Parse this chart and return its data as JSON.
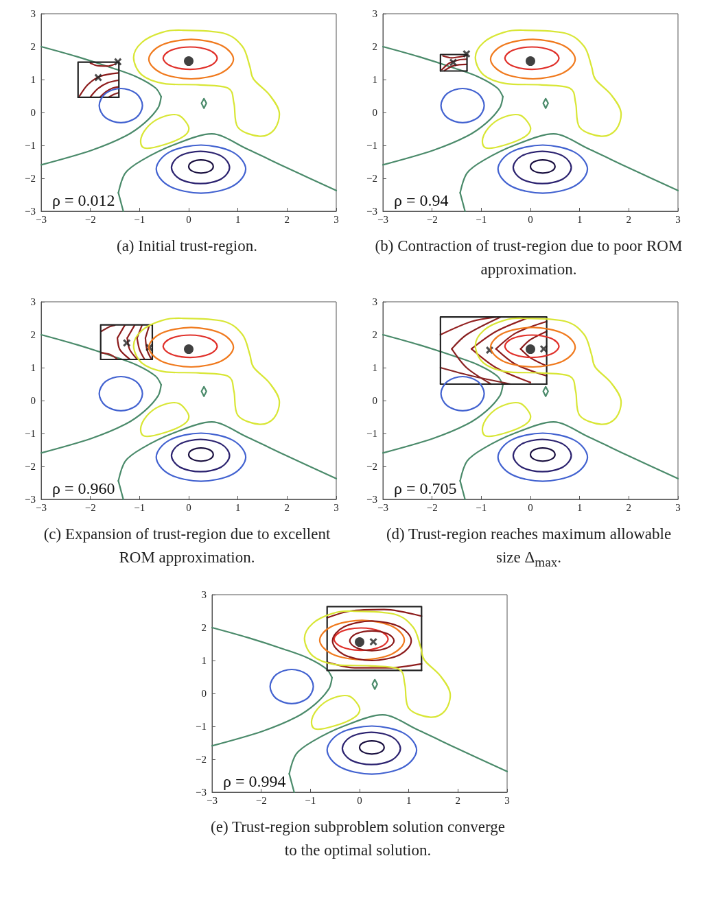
{
  "chart_data": [
    {
      "type": "line",
      "xlim": [
        -3,
        3
      ],
      "ylim": [
        -3,
        3
      ],
      "xticks": [
        {
          "value": -3,
          "label": "−3"
        },
        {
          "value": -2,
          "label": "−2"
        },
        {
          "value": -1,
          "label": "−1"
        },
        0,
        1,
        2,
        3
      ],
      "yticks": [
        {
          "value": -3,
          "label": "−3"
        },
        {
          "value": -2,
          "label": "−2"
        },
        {
          "value": -1,
          "label": "−1"
        },
        0,
        1,
        2,
        3
      ],
      "annotations": [
        "ρ = 0.012",
        "(a) Initial trust-region."
      ],
      "series": [
        {
          "color": "#4a8a6a",
          "x": [
            -3,
            -2.28,
            -1.53,
            -1.04,
            -0.67,
            -0.56
          ],
          "values": [
            2.0,
            1.7,
            1.34,
            1.07,
            0.74,
            0.48
          ]
        },
        {
          "color": "#4a8a6a",
          "x": [
            -3,
            -1.98,
            -1.29,
            -0.9,
            -0.62,
            -0.56
          ],
          "values": [
            -1.59,
            -1.15,
            -0.72,
            -0.32,
            0.15,
            0.48
          ]
        },
        {
          "color": "#4a8a6a",
          "x": [
            -1.43,
            -1.33
          ],
          "values": [
            -2.44,
            -3
          ]
        },
        {
          "color": "#4a8a6a",
          "x": [
            -1.43,
            -1.29,
            -0.95,
            -0.3,
            0.47,
            1.19,
            1.94,
            3
          ],
          "values": [
            -2.44,
            -1.84,
            -1.45,
            -0.98,
            -0.65,
            -1.11,
            -1.64,
            -2.37
          ]
        },
        {
          "color": "#8b1a1a",
          "x": [
            -2.22,
            -2.05,
            -1.8,
            -1.43
          ],
          "values": [
            0.5,
            0.85,
            1.1,
            1.2
          ]
        },
        {
          "color": "#8e1c1c",
          "x": [
            -2.0,
            -1.85,
            -1.65,
            -1.43
          ],
          "values": [
            0.47,
            0.72,
            0.9,
            0.98
          ]
        },
        {
          "color": "#911e1e",
          "x": [
            -1.8,
            -1.68,
            -1.55,
            -1.43
          ],
          "values": [
            0.47,
            0.63,
            0.74,
            0.78
          ]
        },
        {
          "color": "#882020",
          "x": [
            -1.62,
            -1.52,
            -1.43
          ],
          "values": [
            0.47,
            0.55,
            0.6
          ]
        },
        {
          "color": "#942222",
          "x": [
            -2.0,
            -1.85,
            -1.65,
            -1.5
          ],
          "values": [
            1.5,
            1.42,
            1.41,
            1.47
          ]
        },
        {
          "color": "#222222",
          "x": [
            -2.25,
            -2.25,
            -1.42,
            -1.42
          ],
          "values": [
            0.46,
            1.53,
            1.53,
            0.46
          ]
        },
        {
          "color": "#222222",
          "x": [
            -2.25,
            -1.42
          ],
          "values": [
            0.46,
            0.46
          ]
        },
        {
          "type": "scatter",
          "marker": "circle",
          "color": "#111111",
          "x": [
            0
          ],
          "values": [
            1.56
          ]
        },
        {
          "type": "scatter",
          "marker": "cross",
          "color": "#222222",
          "x": [
            -1.84,
            -1.44
          ],
          "values": [
            1.06,
            1.54
          ]
        }
      ]
    },
    {
      "type": "line",
      "xlim": [
        -3,
        3
      ],
      "ylim": [
        -3,
        3
      ],
      "xticks": [
        {
          "value": -3,
          "label": "−3"
        },
        {
          "value": -2,
          "label": "−2"
        },
        {
          "value": -1,
          "label": "−1"
        },
        0,
        1,
        2,
        3
      ],
      "yticks": [
        {
          "value": -3,
          "label": "−3"
        },
        {
          "value": -2,
          "label": "−2"
        },
        {
          "value": -1,
          "label": "−1"
        },
        0,
        1,
        2,
        3
      ],
      "annotations": [
        "ρ = 0.94",
        "(b) Contraction of trust-region due to poor ROM approximation."
      ],
      "series": [
        {
          "color": "#4a8a6a",
          "x": [
            -3,
            -2.28,
            -1.53,
            -1.04,
            -0.67,
            -0.56
          ],
          "values": [
            2.0,
            1.7,
            1.34,
            1.07,
            0.74,
            0.48
          ]
        },
        {
          "color": "#4a8a6a",
          "x": [
            -3,
            -1.98,
            -1.29,
            -0.9,
            -0.62,
            -0.56
          ],
          "values": [
            -1.59,
            -1.15,
            -0.72,
            -0.32,
            0.15,
            0.48
          ]
        },
        {
          "color": "#4a8a6a",
          "x": [
            -1.43,
            -1.33
          ],
          "values": [
            -2.44,
            -3
          ]
        },
        {
          "color": "#4a8a6a",
          "x": [
            -1.43,
            -1.29,
            -0.95,
            -0.3,
            0.47,
            1.19,
            1.94,
            3
          ],
          "values": [
            -2.44,
            -1.84,
            -1.45,
            -0.98,
            -0.65,
            -1.11,
            -1.64,
            -2.37
          ]
        },
        {
          "color": "#8b1a1a",
          "x": [
            -1.8,
            -1.65,
            -1.45,
            -1.3
          ],
          "values": [
            1.3,
            1.5,
            1.6,
            1.62
          ]
        },
        {
          "color": "#8e1c1c",
          "x": [
            -1.75,
            -1.6,
            -1.45,
            -1.3
          ],
          "values": [
            1.27,
            1.4,
            1.45,
            1.46
          ]
        },
        {
          "color": "#911e1e",
          "x": [
            -1.78,
            -1.6,
            -1.4,
            -1.3
          ],
          "values": [
            1.72,
            1.66,
            1.7,
            1.73
          ]
        },
        {
          "color": "#222222",
          "x": [
            -1.83,
            -1.83,
            -1.29,
            -1.29
          ],
          "values": [
            1.26,
            1.76,
            1.76,
            1.26
          ]
        },
        {
          "color": "#222222",
          "x": [
            -1.83,
            -1.29
          ],
          "values": [
            1.26,
            1.26
          ]
        },
        {
          "type": "scatter",
          "marker": "circle",
          "color": "#111111",
          "x": [
            0
          ],
          "values": [
            1.56
          ]
        },
        {
          "type": "scatter",
          "marker": "cross",
          "color": "#222222",
          "x": [
            -1.57,
            -1.3
          ],
          "values": [
            1.52,
            1.78
          ]
        }
      ]
    },
    {
      "type": "line",
      "xlim": [
        -3,
        3
      ],
      "ylim": [
        -3,
        3
      ],
      "xticks": [
        {
          "value": -3,
          "label": "−3"
        },
        {
          "value": -2,
          "label": "−2"
        },
        {
          "value": -1,
          "label": "−1"
        },
        0,
        1,
        2,
        3
      ],
      "yticks": [
        {
          "value": -3,
          "label": "−3"
        },
        {
          "value": -2,
          "label": "−2"
        },
        {
          "value": -1,
          "label": "−1"
        },
        0,
        1,
        2,
        3
      ],
      "annotations": [
        "ρ = 0.960",
        "(c) Expansion of trust-region due to excellent ROM approximation."
      ],
      "series": [
        {
          "color": "#4a8a6a",
          "x": [
            -3,
            -2.28,
            -1.53,
            -1.04,
            -0.67,
            -0.56
          ],
          "values": [
            2.0,
            1.7,
            1.34,
            1.07,
            0.74,
            0.48
          ]
        },
        {
          "color": "#4a8a6a",
          "x": [
            -3,
            -1.98,
            -1.29,
            -0.9,
            -0.62,
            -0.56
          ],
          "values": [
            -1.59,
            -1.15,
            -0.72,
            -0.32,
            0.15,
            0.48
          ]
        },
        {
          "color": "#4a8a6a",
          "x": [
            -1.43,
            -1.33
          ],
          "values": [
            -2.44,
            -3
          ]
        },
        {
          "color": "#4a8a6a",
          "x": [
            -1.43,
            -1.29,
            -0.95,
            -0.3,
            0.47,
            1.19,
            1.94,
            3
          ],
          "values": [
            -2.44,
            -1.84,
            -1.45,
            -0.98,
            -0.65,
            -1.11,
            -1.64,
            -2.37
          ]
        },
        {
          "color": "#8b1a1a",
          "x": [
            -1.45,
            -1.3
          ],
          "values": [
            1.9,
            2.29
          ]
        },
        {
          "color": "#8b1a1a",
          "x": [
            -1.45,
            -1.4,
            -1.2
          ],
          "values": [
            1.9,
            1.55,
            1.26
          ]
        },
        {
          "color": "#8e1c1c",
          "x": [
            -1.25,
            -1.1
          ],
          "values": [
            1.9,
            2.29
          ]
        },
        {
          "color": "#8e1c1c",
          "x": [
            -1.25,
            -1.2,
            -1.05
          ],
          "values": [
            1.9,
            1.55,
            1.26
          ]
        },
        {
          "color": "#911e1e",
          "x": [
            -1.05,
            -0.95
          ],
          "values": [
            1.9,
            2.29
          ]
        },
        {
          "color": "#911e1e",
          "x": [
            -1.05,
            -1.0,
            -0.9
          ],
          "values": [
            1.9,
            1.55,
            1.26
          ]
        },
        {
          "color": "#882020",
          "x": [
            -0.88,
            -0.8
          ],
          "values": [
            1.9,
            2.29
          ]
        },
        {
          "color": "#882020",
          "x": [
            -0.88,
            -0.85,
            -0.76
          ],
          "values": [
            1.9,
            1.55,
            1.26
          ]
        },
        {
          "color": "#942222",
          "x": [
            -1.78,
            -1.6,
            -1.45
          ],
          "values": [
            1.45,
            1.4,
            1.26
          ]
        },
        {
          "color": "#852424",
          "x": [
            -1.78,
            -1.6,
            -1.5
          ],
          "values": [
            2.1,
            2.25,
            2.29
          ]
        },
        {
          "color": "#222222",
          "x": [
            -1.79,
            -1.79,
            -0.74,
            -0.74
          ],
          "values": [
            1.25,
            2.3,
            2.3,
            1.25
          ]
        },
        {
          "color": "#222222",
          "x": [
            -1.79,
            -0.74
          ],
          "values": [
            1.25,
            1.25
          ]
        },
        {
          "type": "scatter",
          "marker": "circle",
          "color": "#111111",
          "x": [
            0
          ],
          "values": [
            1.56
          ]
        },
        {
          "type": "scatter",
          "marker": "cross",
          "color": "#222222",
          "x": [
            -1.26,
            -0.8
          ],
          "values": [
            1.75,
            1.61
          ]
        }
      ]
    },
    {
      "type": "line",
      "xlim": [
        -3,
        3
      ],
      "ylim": [
        -3,
        3
      ],
      "xticks": [
        {
          "value": -3,
          "label": "−3"
        },
        {
          "value": -2,
          "label": "−2"
        },
        {
          "value": -1,
          "label": "−1"
        },
        0,
        1,
        2,
        3
      ],
      "yticks": [
        {
          "value": -3,
          "label": "−3"
        },
        {
          "value": -2,
          "label": "−2"
        },
        {
          "value": -1,
          "label": "−1"
        },
        0,
        1,
        2,
        3
      ],
      "annotations": [
        "ρ = 0.705",
        "(d) Trust-region reaches maximum allowable size Δ$_{max}$."
      ],
      "series": [
        {
          "color": "#4a8a6a",
          "x": [
            -3,
            -2.28,
            -1.53,
            -1.04,
            -0.67,
            -0.56
          ],
          "values": [
            2.0,
            1.7,
            1.34,
            1.07,
            0.74,
            0.48
          ]
        },
        {
          "color": "#4a8a6a",
          "x": [
            -3,
            -1.98,
            -1.29,
            -0.9,
            -0.62,
            -0.56
          ],
          "values": [
            -1.59,
            -1.15,
            -0.72,
            -0.32,
            0.15,
            0.48
          ]
        },
        {
          "color": "#4a8a6a",
          "x": [
            -1.43,
            -1.33
          ],
          "values": [
            -2.44,
            -3
          ]
        },
        {
          "color": "#4a8a6a",
          "x": [
            -1.43,
            -1.29,
            -0.95,
            -0.3,
            0.47,
            1.19,
            1.94,
            3
          ],
          "values": [
            -2.44,
            -1.84,
            -1.45,
            -0.98,
            -0.65,
            -1.11,
            -1.64,
            -2.37
          ]
        },
        {
          "color": "#8b1a1a",
          "x": [
            -0.2,
            0.0,
            0.33
          ],
          "values": [
            1.57,
            1.85,
            2.1
          ]
        },
        {
          "color": "#8b1a1a",
          "x": [
            -0.2,
            0.0,
            0.33
          ],
          "values": [
            1.57,
            1.3,
            1.05
          ]
        },
        {
          "color": "#8e1c1c",
          "x": [
            -0.7,
            -0.3,
            0.33
          ],
          "values": [
            1.57,
            2.05,
            2.4
          ]
        },
        {
          "color": "#8e1c1c",
          "x": [
            -0.7,
            -0.3,
            0.33
          ],
          "values": [
            1.57,
            1.1,
            0.75
          ]
        },
        {
          "color": "#911e1e",
          "x": [
            -1.2,
            -0.7,
            0.0
          ],
          "values": [
            1.57,
            2.1,
            2.54
          ]
        },
        {
          "color": "#911e1e",
          "x": [
            -1.2,
            -0.7,
            0.0
          ],
          "values": [
            1.57,
            1.0,
            0.55
          ]
        },
        {
          "color": "#882020",
          "x": [
            -1.6,
            -1.3,
            -0.6
          ],
          "values": [
            1.57,
            2.0,
            2.54
          ]
        },
        {
          "color": "#882020",
          "x": [
            -1.6,
            -1.3,
            -0.8
          ],
          "values": [
            1.57,
            1.0,
            0.5
          ]
        },
        {
          "color": "#942222",
          "x": [
            -1.83,
            -1.2,
            -0.7
          ],
          "values": [
            2.0,
            2.4,
            2.54
          ]
        },
        {
          "color": "#852424",
          "x": [
            -1.83,
            -1.2,
            -0.4
          ],
          "values": [
            1.0,
            0.75,
            0.5
          ]
        },
        {
          "color": "#222222",
          "x": [
            -1.83,
            -1.83,
            0.33,
            0.33
          ],
          "values": [
            0.5,
            2.54,
            2.54,
            0.5
          ]
        },
        {
          "color": "#222222",
          "x": [
            -1.83,
            0.33
          ],
          "values": [
            0.5,
            0.5
          ]
        },
        {
          "type": "scatter",
          "marker": "circle",
          "color": "#111111",
          "x": [
            0
          ],
          "values": [
            1.56
          ]
        },
        {
          "type": "scatter",
          "marker": "cross",
          "color": "#222222",
          "x": [
            -0.83,
            0.27
          ],
          "values": [
            1.53,
            1.57
          ]
        }
      ]
    },
    {
      "type": "line",
      "xlim": [
        -3,
        3
      ],
      "ylim": [
        -3,
        3
      ],
      "xticks": [
        {
          "value": -3,
          "label": "−3"
        },
        {
          "value": -2,
          "label": "−2"
        },
        {
          "value": -1,
          "label": "−1"
        },
        0,
        1,
        2,
        3
      ],
      "yticks": [
        {
          "value": -3,
          "label": "−3"
        },
        {
          "value": -2,
          "label": "−2"
        },
        {
          "value": -1,
          "label": "−1"
        },
        0,
        1,
        2,
        3
      ],
      "annotations": [
        "ρ = 0.994",
        "(e) Trust-region subproblem solution converge to the optimal solution."
      ],
      "series": [
        {
          "color": "#4a8a6a",
          "x": [
            -3,
            -2.28,
            -1.53,
            -1.04,
            -0.67,
            -0.56
          ],
          "values": [
            2.0,
            1.7,
            1.34,
            1.07,
            0.74,
            0.48
          ]
        },
        {
          "color": "#4a8a6a",
          "x": [
            -3,
            -1.98,
            -1.29,
            -0.9,
            -0.62,
            -0.56
          ],
          "values": [
            -1.59,
            -1.15,
            -0.72,
            -0.32,
            0.15,
            0.48
          ]
        },
        {
          "color": "#4a8a6a",
          "x": [
            -1.43,
            -1.33
          ],
          "values": [
            -2.44,
            -3
          ]
        },
        {
          "color": "#4a8a6a",
          "x": [
            -1.43,
            -1.29,
            -0.95,
            -0.3,
            0.47,
            1.19,
            1.94,
            3
          ],
          "values": [
            -2.44,
            -1.84,
            -1.45,
            -0.98,
            -0.65,
            -1.11,
            -1.64,
            -2.37
          ]
        },
        {
          "color": "#8b1a1a",
          "x": [
            -0.66,
            -0.2,
            0.5,
            1.26
          ],
          "values": [
            2.3,
            2.5,
            2.55,
            2.35
          ]
        },
        {
          "color": "#8e1c1c",
          "x": [
            -0.66,
            -0.1,
            0.6,
            1.26
          ],
          "values": [
            0.95,
            0.78,
            0.78,
            0.9
          ]
        },
        {
          "color": "#222222",
          "x": [
            -0.66,
            -0.66,
            1.26,
            1.26
          ],
          "values": [
            0.7,
            2.64,
            2.64,
            0.7
          ]
        },
        {
          "color": "#222222",
          "x": [
            -0.66,
            1.26
          ],
          "values": [
            0.7,
            0.7
          ]
        },
        {
          "type": "scatter",
          "marker": "circle",
          "color": "#111111",
          "x": [
            0
          ],
          "values": [
            1.56
          ]
        },
        {
          "type": "scatter",
          "marker": "cross",
          "color": "#222222",
          "x": [
            0.28
          ],
          "values": [
            1.57
          ]
        }
      ]
    }
  ]
}
